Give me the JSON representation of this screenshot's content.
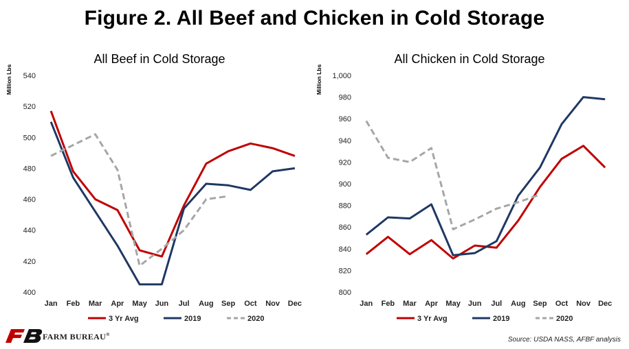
{
  "title": "Figure 2. All Beef and Chicken in Cold Storage",
  "logo": {
    "text": "FARM BUREAU",
    "mark": "®"
  },
  "source": "Source:  USDA NASS, AFBF analysis",
  "colors": {
    "avg3": "#c00000",
    "y2019": "#1f3864",
    "y2020": "#a6a6a6"
  },
  "chart_data": [
    {
      "type": "line",
      "title": "All Beef in Cold Storage",
      "ylabel": "Million Lbs",
      "xlabel": "",
      "categories": [
        "Jan",
        "Feb",
        "Mar",
        "Apr",
        "May",
        "Jun",
        "Jul",
        "Aug",
        "Sep",
        "Oct",
        "Nov",
        "Dec"
      ],
      "ylim": [
        400,
        540
      ],
      "yticks": [
        400,
        420,
        440,
        460,
        480,
        500,
        520,
        540
      ],
      "yticks_labels": [
        "400",
        "420",
        "440",
        "460",
        "480",
        "500",
        "520",
        "540"
      ],
      "legend": "bottom",
      "grid": false,
      "series": [
        {
          "name": "3 Yr Avg",
          "key": "avg3",
          "values": [
            517,
            478,
            460,
            453,
            427,
            423,
            456,
            483,
            491,
            496,
            493,
            488
          ]
        },
        {
          "name": "2019",
          "key": "y2019",
          "values": [
            510,
            474,
            452,
            430,
            405,
            405,
            454,
            470,
            469,
            466,
            478,
            480
          ]
        },
        {
          "name": "2020",
          "key": "y2020",
          "values": [
            488,
            495,
            502,
            479,
            417,
            428,
            440,
            460,
            462,
            null,
            null,
            null
          ]
        }
      ]
    },
    {
      "type": "line",
      "title": "All Chicken in Cold Storage",
      "ylabel": "Million Lbs",
      "xlabel": "",
      "categories": [
        "Jan",
        "Feb",
        "Mar",
        "Apr",
        "May",
        "Jun",
        "Jul",
        "Aug",
        "Sep",
        "Oct",
        "Nov",
        "Dec"
      ],
      "ylim": [
        800,
        1000
      ],
      "yticks": [
        800,
        820,
        840,
        860,
        880,
        900,
        920,
        940,
        960,
        980,
        1000
      ],
      "yticks_labels": [
        "800",
        "820",
        "840",
        "860",
        "880",
        "900",
        "920",
        "940",
        "960",
        "980",
        "1,000"
      ],
      "legend": "bottom",
      "grid": false,
      "series": [
        {
          "name": "3 Yr Avg",
          "key": "avg3",
          "values": [
            835,
            851,
            835,
            848,
            831,
            843,
            841,
            866,
            897,
            923,
            935,
            915
          ]
        },
        {
          "name": "2019",
          "key": "y2019",
          "values": [
            853,
            869,
            868,
            881,
            834,
            836,
            847,
            889,
            915,
            955,
            980,
            978
          ]
        },
        {
          "name": "2020",
          "key": "y2020",
          "values": [
            958,
            924,
            920,
            933,
            858,
            867,
            877,
            883,
            890,
            null,
            null,
            null
          ]
        }
      ]
    }
  ]
}
